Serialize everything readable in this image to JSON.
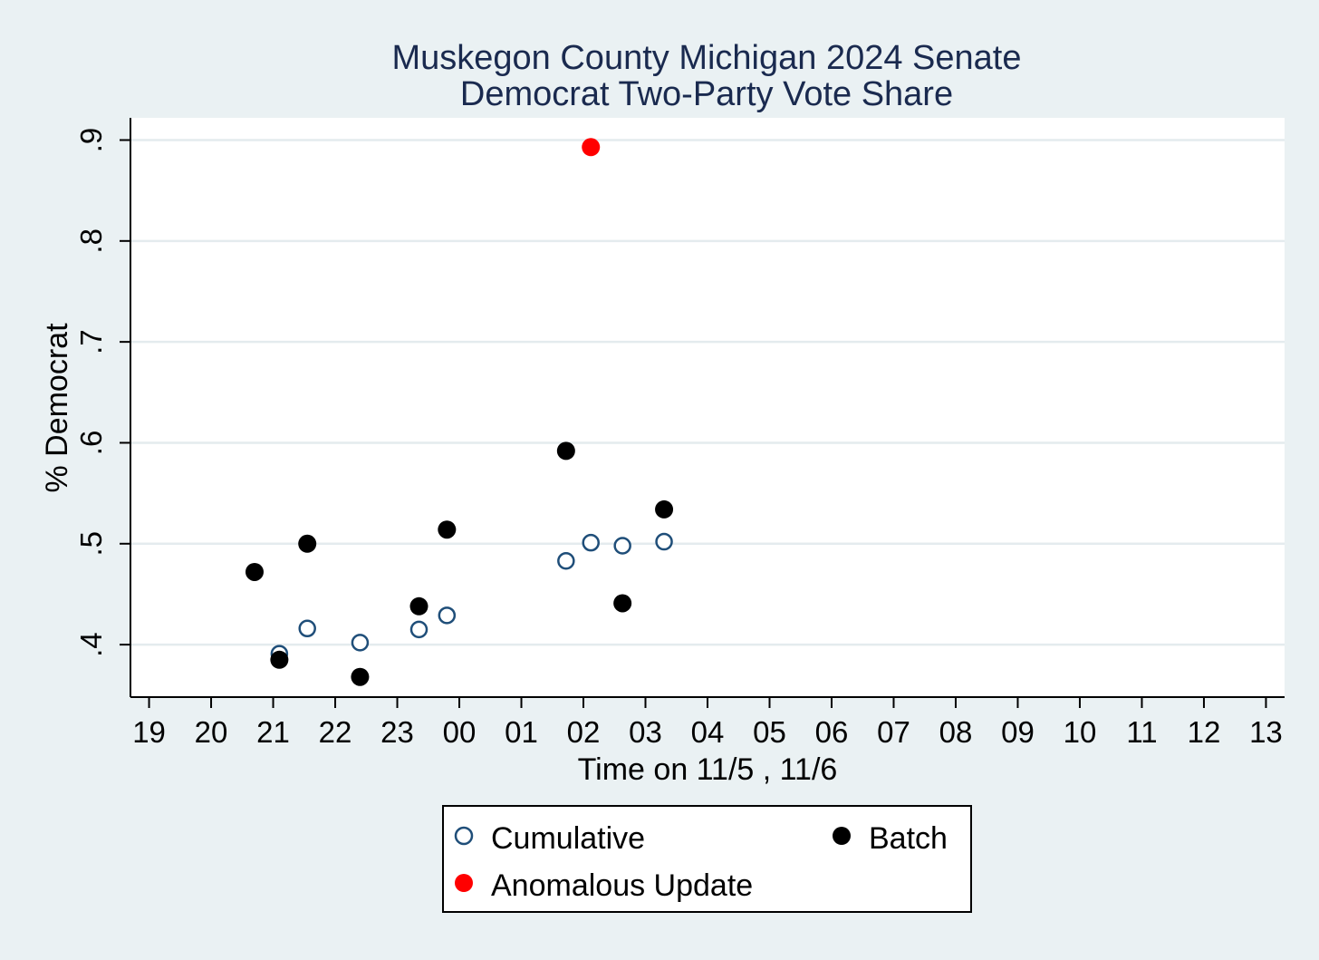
{
  "chart_data": {
    "type": "scatter",
    "title": "Muskegon County Michigan 2024 Senate",
    "subtitle": "Democrat Two-Party Vote Share",
    "xlabel": "Time on 11/5 , 11/6",
    "ylabel": "% Democrat",
    "x_tick_labels": [
      "19",
      "20",
      "21",
      "22",
      "23",
      "00",
      "01",
      "02",
      "03",
      "04",
      "05",
      "06",
      "07",
      "08",
      "09",
      "10",
      "11",
      "12",
      "13"
    ],
    "xlim": [
      18.7,
      37.3
    ],
    "y_ticks": [
      0.4,
      0.5,
      0.6,
      0.7,
      0.8,
      0.9
    ],
    "y_tick_labels": [
      ".4",
      ".5",
      ".6",
      ".7",
      ".8",
      ".9"
    ],
    "ylim": [
      0.348,
      0.922
    ],
    "grid": true,
    "legend_position": "bottom",
    "series": [
      {
        "name": "Cumulative",
        "marker": "hollow-circle",
        "color": "#1f4e79",
        "points": [
          {
            "x": 21.1,
            "y": 0.391
          },
          {
            "x": 21.55,
            "y": 0.416
          },
          {
            "x": 22.4,
            "y": 0.402
          },
          {
            "x": 23.35,
            "y": 0.415
          },
          {
            "x": 23.8,
            "y": 0.429
          },
          {
            "x": 25.72,
            "y": 0.483
          },
          {
            "x": 26.12,
            "y": 0.501
          },
          {
            "x": 26.63,
            "y": 0.498
          },
          {
            "x": 27.3,
            "y": 0.502
          }
        ]
      },
      {
        "name": "Batch",
        "marker": "filled-circle",
        "color": "#000000",
        "points": [
          {
            "x": 20.7,
            "y": 0.472
          },
          {
            "x": 21.1,
            "y": 0.385
          },
          {
            "x": 21.55,
            "y": 0.5
          },
          {
            "x": 22.4,
            "y": 0.368
          },
          {
            "x": 23.35,
            "y": 0.438
          },
          {
            "x": 23.8,
            "y": 0.514
          },
          {
            "x": 25.72,
            "y": 0.592
          },
          {
            "x": 26.63,
            "y": 0.441
          },
          {
            "x": 27.3,
            "y": 0.534
          }
        ]
      },
      {
        "name": "Anomalous Update",
        "marker": "filled-circle",
        "color": "#ff0000",
        "points": [
          {
            "x": 26.12,
            "y": 0.893
          }
        ]
      }
    ]
  }
}
